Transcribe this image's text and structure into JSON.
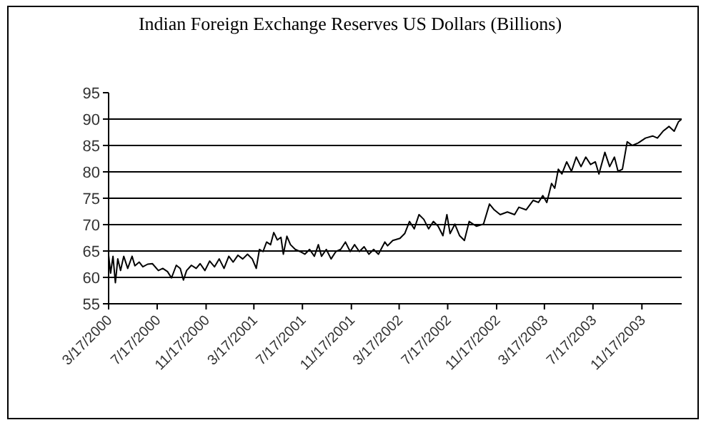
{
  "chart_data": {
    "type": "line",
    "title": "Indian Foreign Exchange Reserves US Dollars (Billions)",
    "x": [
      "2000-03-17",
      "2000-03-22",
      "2000-03-28",
      "2000-04-03",
      "2000-04-09",
      "2000-04-16",
      "2000-04-24",
      "2000-05-04",
      "2000-05-15",
      "2000-05-22",
      "2000-06-02",
      "2000-06-11",
      "2000-06-23",
      "2000-07-05",
      "2000-07-20",
      "2000-07-31",
      "2000-08-12",
      "2000-08-22",
      "2000-09-03",
      "2000-09-13",
      "2000-09-21",
      "2000-09-29",
      "2000-10-11",
      "2000-10-23",
      "2000-11-02",
      "2000-11-14",
      "2000-11-26",
      "2000-12-08",
      "2000-12-20",
      "2001-01-01",
      "2001-01-13",
      "2001-01-24",
      "2001-02-05",
      "2001-02-17",
      "2001-03-01",
      "2001-03-13",
      "2001-03-23",
      "2001-03-31",
      "2001-04-09",
      "2001-04-18",
      "2001-04-28",
      "2001-05-06",
      "2001-05-15",
      "2001-05-24",
      "2001-05-30",
      "2001-06-08",
      "2001-06-17",
      "2001-06-29",
      "2001-07-11",
      "2001-07-23",
      "2001-08-04",
      "2001-08-16",
      "2001-08-26",
      "2001-09-03",
      "2001-09-15",
      "2001-09-27",
      "2001-10-09",
      "2001-10-21",
      "2001-11-02",
      "2001-11-14",
      "2001-11-25",
      "2001-12-07",
      "2001-12-19",
      "2001-12-31",
      "2002-01-12",
      "2002-01-24",
      "2002-02-09",
      "2002-02-16",
      "2002-03-01",
      "2002-03-19",
      "2002-03-31",
      "2002-04-12",
      "2002-04-24",
      "2002-05-06",
      "2002-05-18",
      "2002-05-30",
      "2002-06-11",
      "2002-06-23",
      "2002-07-05",
      "2002-07-15",
      "2002-07-23",
      "2002-08-04",
      "2002-08-16",
      "2002-08-28",
      "2002-09-09",
      "2002-09-27",
      "2002-10-15",
      "2002-10-30",
      "2002-11-11",
      "2002-11-26",
      "2002-12-14",
      "2003-01-01",
      "2003-01-12",
      "2003-01-30",
      "2003-02-17",
      "2003-03-02",
      "2003-03-13",
      "2003-03-23",
      "2003-04-04",
      "2003-04-12",
      "2003-04-21",
      "2003-04-30",
      "2003-05-12",
      "2003-05-24",
      "2003-06-05",
      "2003-06-17",
      "2003-06-29",
      "2003-07-11",
      "2003-07-23",
      "2003-08-01",
      "2003-08-16",
      "2003-08-28",
      "2003-09-09",
      "2003-09-18",
      "2003-09-29",
      "2003-10-11",
      "2003-10-24",
      "2003-11-08",
      "2003-11-26",
      "2003-12-14",
      "2003-12-26",
      "2004-01-09",
      "2004-01-24",
      "2004-02-06",
      "2004-02-17",
      "2004-02-25"
    ],
    "series": [
      {
        "color": "#000000",
        "values": [
          64.2,
          60.8,
          64,
          59,
          63.5,
          61.3,
          64,
          61.7,
          64,
          62.2,
          62.9,
          62,
          62.5,
          62.6,
          61.3,
          61.7,
          61.1,
          59.9,
          62.3,
          61.7,
          59.5,
          61.3,
          62.3,
          61.7,
          62.6,
          61.3,
          63.1,
          62,
          63.5,
          61.7,
          64,
          62.9,
          64.2,
          63.5,
          64.4,
          63.5,
          61.7,
          65.3,
          64.9,
          66.7,
          66.2,
          68.5,
          67.1,
          67.6,
          64.4,
          67.8,
          66.2,
          65.3,
          64.9,
          64.4,
          65.3,
          64,
          66.2,
          64,
          65.3,
          63.5,
          64.9,
          65.3,
          66.7,
          64.9,
          66.2,
          64.9,
          65.8,
          64.4,
          65.3,
          64.4,
          66.7,
          66,
          67,
          67.4,
          68.3,
          70.6,
          69.2,
          71.9,
          71,
          69.2,
          70.6,
          69.7,
          67.9,
          71.9,
          68.3,
          70.1,
          67.9,
          67,
          70.6,
          69.7,
          70.1,
          73.9,
          72.8,
          71.9,
          72.4,
          71.9,
          73.3,
          72.8,
          74.6,
          74.2,
          75.5,
          74.2,
          77.8,
          76.9,
          80.5,
          79.6,
          81.9,
          80.1,
          82.8,
          81,
          82.8,
          81.4,
          81.9,
          79.6,
          83.7,
          81,
          82.8,
          80.1,
          80.5,
          85.7,
          85,
          85.5,
          86.4,
          86.8,
          86.4,
          87.7,
          88.6,
          87.7,
          89.5,
          90
        ]
      }
    ],
    "xlim": [
      "2000-03-17",
      "2004-02-25"
    ],
    "xticks": [
      {
        "value": "2000-03-17",
        "label": "3/17/2000"
      },
      {
        "value": "2000-07-17",
        "label": "7/17/2000"
      },
      {
        "value": "2000-11-17",
        "label": "11/17/2000"
      },
      {
        "value": "2001-03-17",
        "label": "3/17/2001"
      },
      {
        "value": "2001-07-17",
        "label": "7/17/2001"
      },
      {
        "value": "2001-11-17",
        "label": "11/17/2001"
      },
      {
        "value": "2002-03-17",
        "label": "3/17/2002"
      },
      {
        "value": "2002-07-17",
        "label": "7/17/2002"
      },
      {
        "value": "2002-11-17",
        "label": "11/17/2002"
      },
      {
        "value": "2003-03-17",
        "label": "3/17/2003"
      },
      {
        "value": "2003-07-17",
        "label": "7/17/2003"
      },
      {
        "value": "2003-11-17",
        "label": "11/17/2003"
      }
    ],
    "ylim": [
      55,
      95
    ],
    "yticks": [
      55,
      60,
      65,
      70,
      75,
      80,
      85,
      90,
      95
    ],
    "grid": "y",
    "legend": false,
    "marker": "none",
    "line_style": "solid"
  }
}
